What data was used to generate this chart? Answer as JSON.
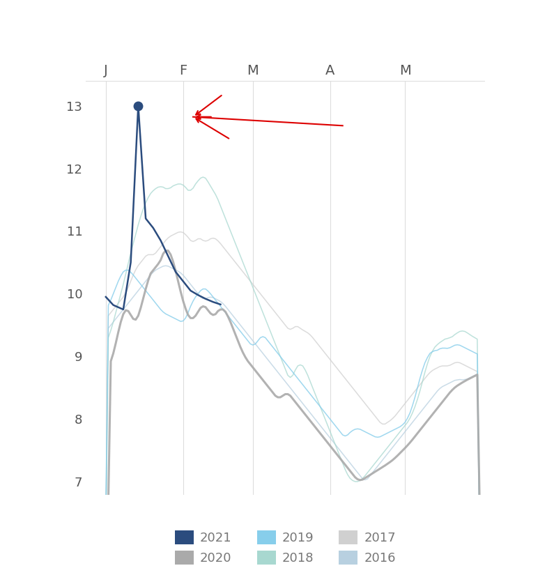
{
  "title": "",
  "x_tick_labels": [
    "J",
    "F",
    "M",
    "A",
    "M"
  ],
  "y_ticks": [
    7,
    8,
    9,
    10,
    11,
    12,
    13
  ],
  "ylim": [
    6.8,
    13.4
  ],
  "xlim": [
    -8,
    152
  ],
  "colors": {
    "2021": "#2B4C7E",
    "2020": "#AAAAAA",
    "2019": "#87CEEB",
    "2018": "#A8D8D0",
    "2017": "#D0D0D0",
    "2016": "#B8D0E0"
  },
  "background": "#FFFFFF",
  "red_color": "#DD0000"
}
